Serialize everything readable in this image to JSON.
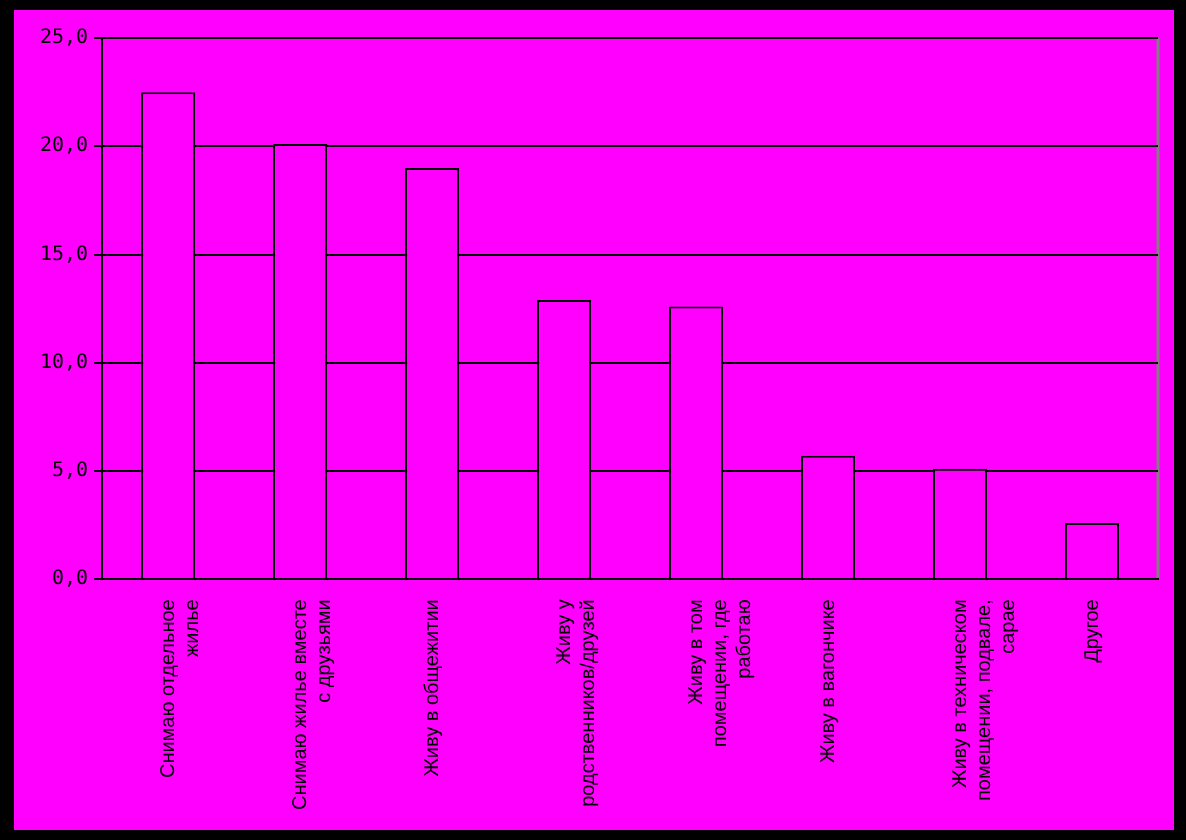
{
  "chart_data": {
    "type": "bar",
    "categories": [
      "Снимаю отдельное жилье",
      "Снимаю жилье вместе с друзьями",
      "Живу в общежитии",
      "Живу у родственников/друзей",
      "Живу в том помещении, где работаю",
      "Живу в вагончике",
      "Живу в техническом помещении, подвале, сарае",
      "Другое"
    ],
    "values": [
      22.5,
      20.1,
      19.0,
      12.9,
      12.6,
      5.7,
      5.1,
      2.6
    ],
    "color": "#ff00ff",
    "ylim": [
      0,
      25
    ],
    "yticks": [
      {
        "value": 0,
        "label": "0,0"
      },
      {
        "value": 5,
        "label": "5,0"
      },
      {
        "value": 10,
        "label": "10,0"
      },
      {
        "value": 15,
        "label": "15,0"
      },
      {
        "value": 20,
        "label": "20,0"
      },
      {
        "value": 25,
        "label": "25,0"
      }
    ],
    "grid": "y",
    "legend": false
  }
}
